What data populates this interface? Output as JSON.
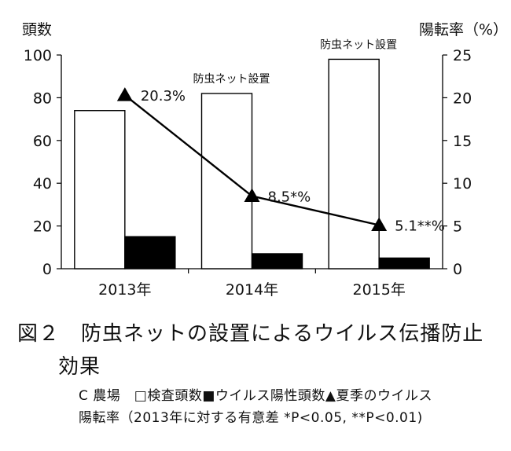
{
  "chart_data": {
    "type": "bar",
    "categories": [
      "2013年",
      "2014年",
      "2015年"
    ],
    "ylabel": "頭数",
    "y2label": "陽転率（%）",
    "ylim": [
      0,
      100
    ],
    "y2lim": [
      0,
      25
    ],
    "yticks": [
      "0",
      "20",
      "40",
      "60",
      "80",
      "100"
    ],
    "y2ticks": [
      "0",
      "5",
      "10",
      "15",
      "20",
      "25"
    ],
    "series": [
      {
        "name": "検査頭数",
        "type": "bar",
        "axis": "left",
        "color": "#ffffff",
        "values": [
          74,
          82,
          98
        ]
      },
      {
        "name": "ウイルス陽性頭数",
        "type": "bar",
        "axis": "left",
        "color": "#000000",
        "values": [
          15,
          7,
          5
        ]
      },
      {
        "name": "夏季のウイルス陽転率",
        "type": "line",
        "axis": "right",
        "color": "#000000",
        "marker": "triangle",
        "values": [
          20.3,
          8.5,
          5.1
        ],
        "labels": [
          "20.3%",
          "8.5*%",
          "5.1**%"
        ]
      }
    ],
    "annotations": [
      {
        "category": "2014年",
        "text": "防虫ネット設置"
      },
      {
        "category": "2015年",
        "text": "防虫ネット設置"
      }
    ],
    "grid": false
  },
  "caption": {
    "title_line1": "図２　防虫ネットの設置によるウイルス伝播防止",
    "title_line2": "効果",
    "note_line1": "C 農場　□検査頭数■ウイルス陽性頭数▲夏季のウイルス",
    "note_line2": "陽転率（2013年に対する有意差 *P<0.05, **P<0.01)"
  }
}
